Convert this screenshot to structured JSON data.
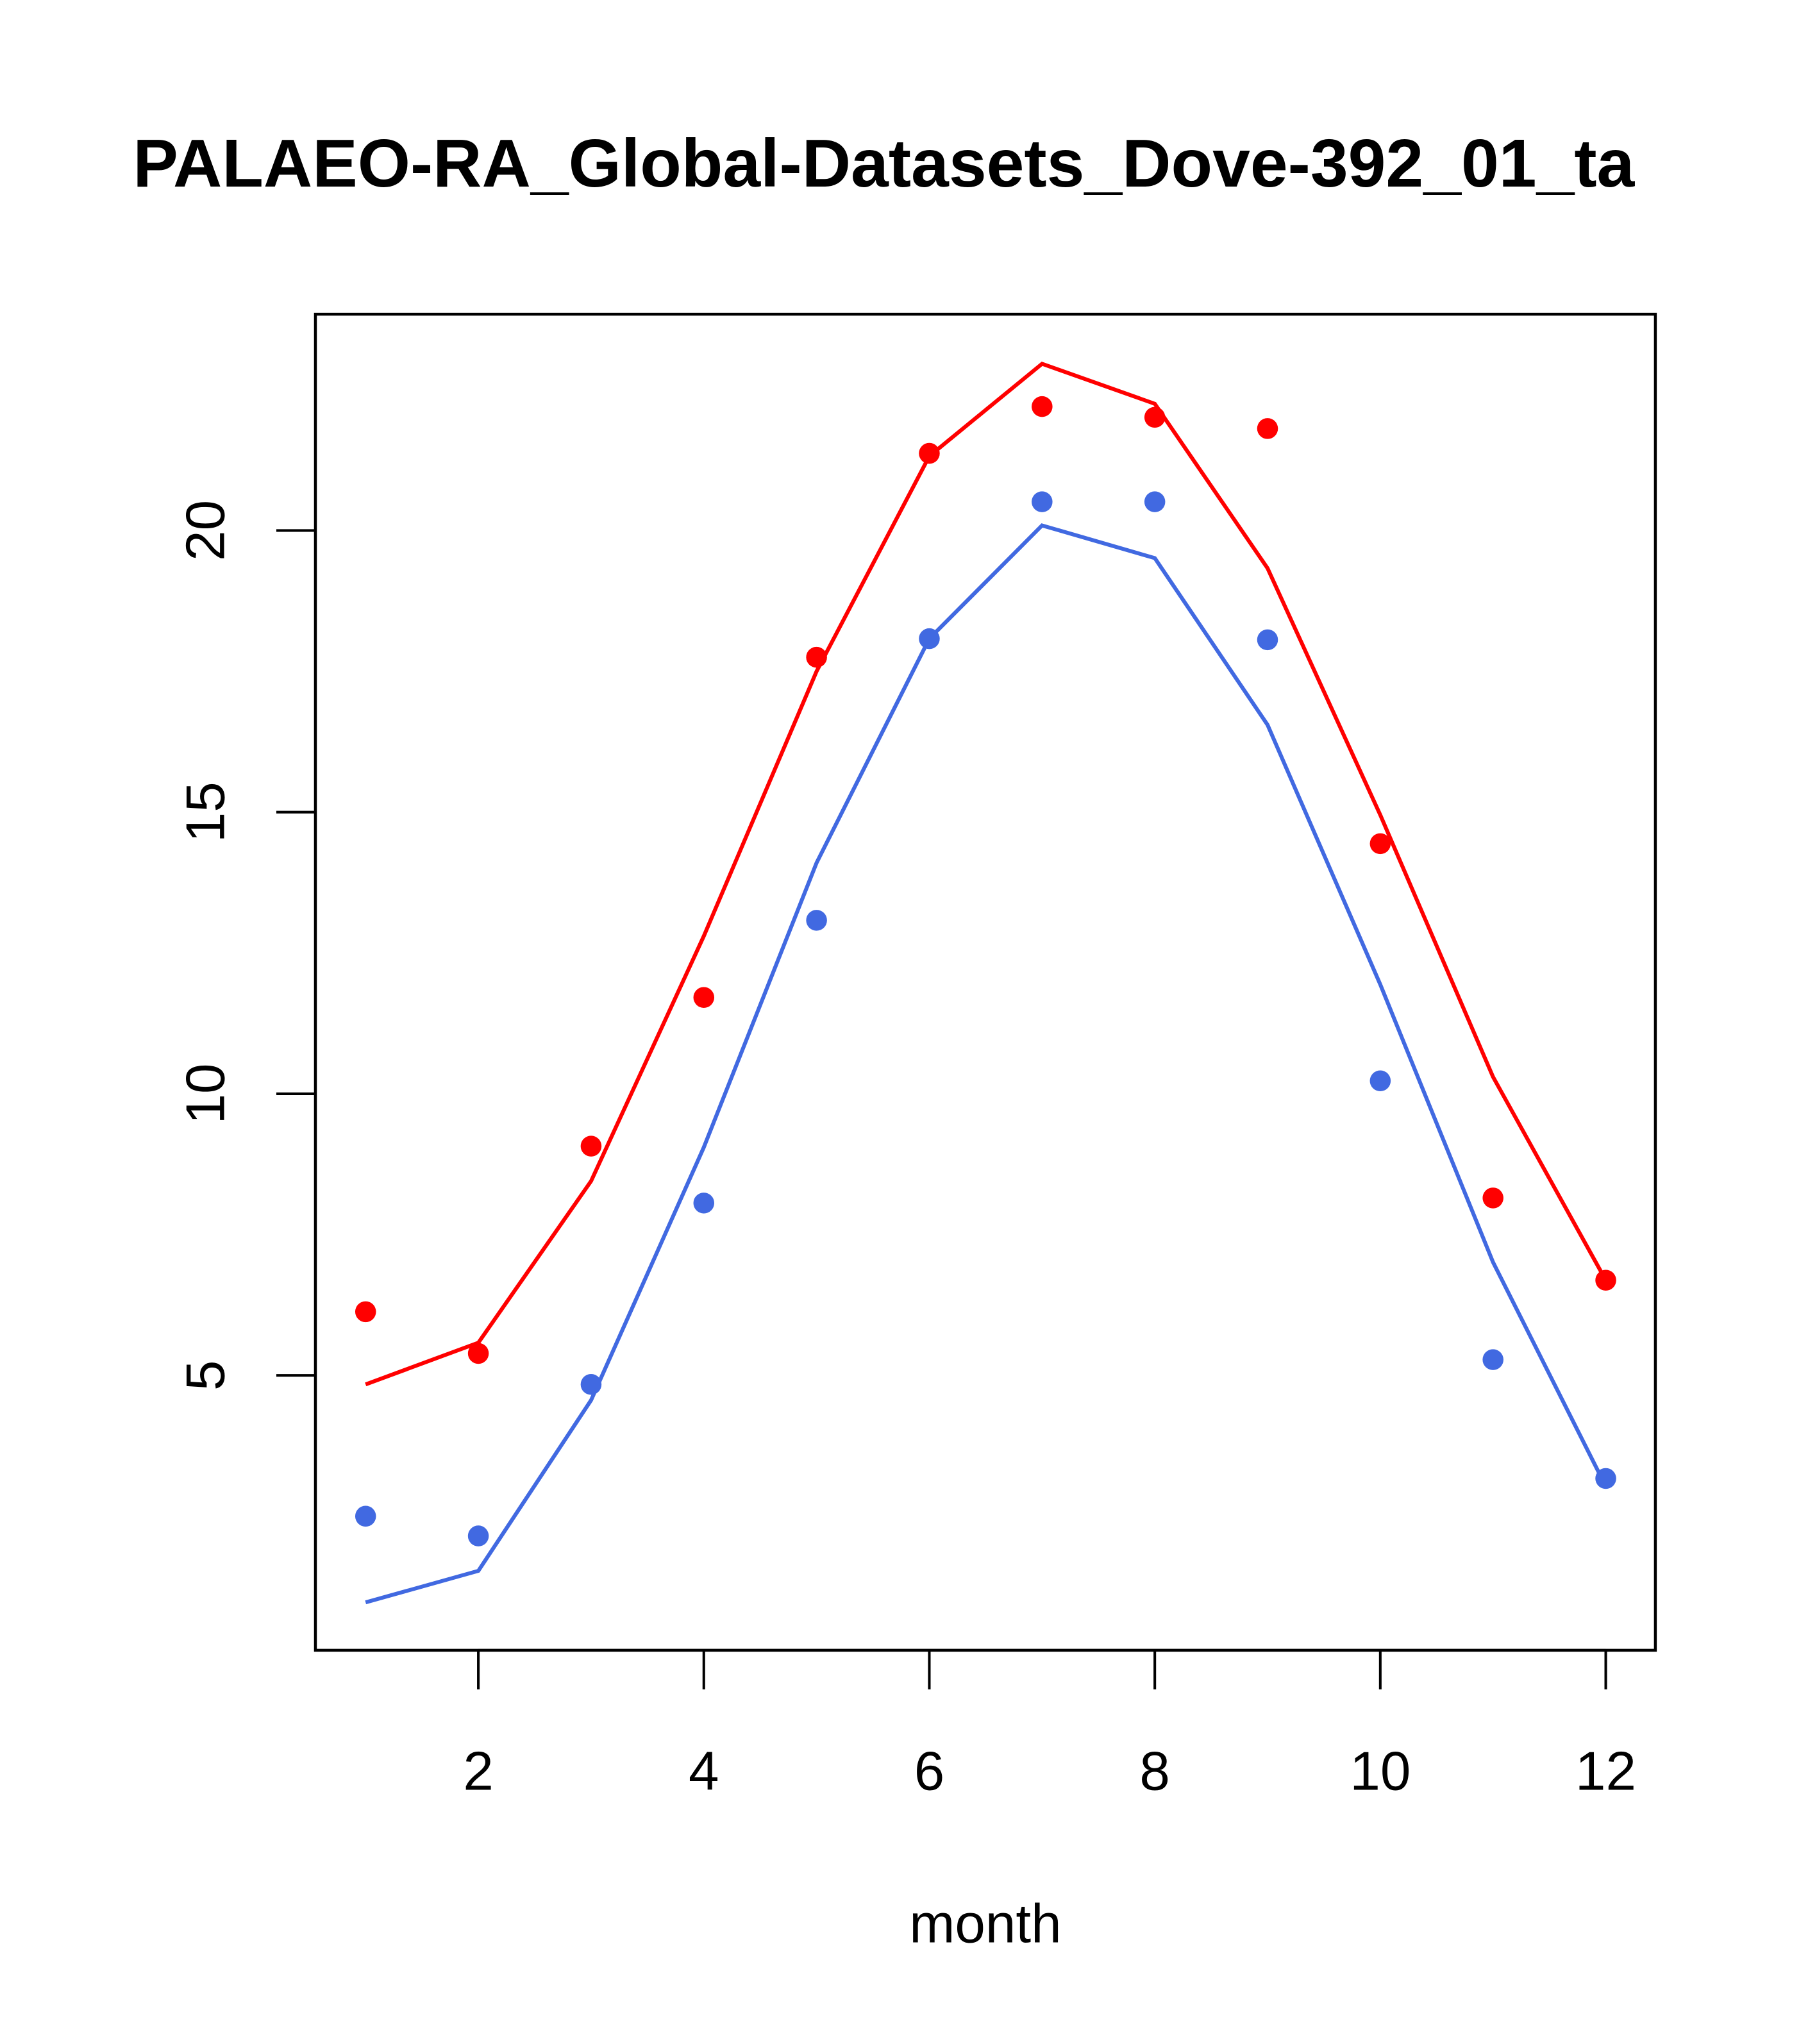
{
  "chart_data": {
    "type": "line",
    "title": "PALAEO-RA_Global-Datasets_Dove-392_01_ta",
    "xlabel": "month",
    "ylabel": "",
    "xlim": [
      0.555,
      12.44
    ],
    "ylim": [
      0.12,
      23.84
    ],
    "grid": false,
    "x_ticks": [
      2,
      4,
      6,
      8,
      10,
      12
    ],
    "x_tick_labels": [
      "2",
      "4",
      "6",
      "8",
      "10",
      "12"
    ],
    "y_ticks": [
      5,
      10,
      15,
      20
    ],
    "y_tick_labels": [
      "5",
      "10",
      "15",
      "20"
    ],
    "x": [
      1,
      2,
      3,
      4,
      5,
      6,
      7,
      8,
      9,
      10,
      11,
      12
    ],
    "series": [
      {
        "name": "red-line",
        "kind": "line",
        "color": "#ff0000",
        "values": [
          4.84,
          5.58,
          8.45,
          12.8,
          17.5,
          21.32,
          22.96,
          22.25,
          19.33,
          14.95,
          10.3,
          6.69
        ]
      },
      {
        "name": "red-points",
        "kind": "points",
        "color": "#ff0000",
        "values": [
          6.13,
          5.39,
          9.07,
          11.71,
          17.75,
          21.37,
          22.2,
          22.01,
          21.81,
          14.44,
          8.15,
          6.69
        ]
      },
      {
        "name": "blue-line",
        "kind": "line",
        "color": "#4169e1",
        "values": [
          0.97,
          1.53,
          4.56,
          9.05,
          14.1,
          18.08,
          20.09,
          19.51,
          16.55,
          11.94,
          7.01,
          3.03
        ]
      },
      {
        "name": "blue-points",
        "kind": "points",
        "color": "#4169e1",
        "values": [
          2.5,
          2.15,
          4.84,
          8.06,
          13.08,
          18.08,
          20.51,
          20.51,
          18.06,
          10.23,
          5.28,
          3.17
        ]
      }
    ]
  }
}
